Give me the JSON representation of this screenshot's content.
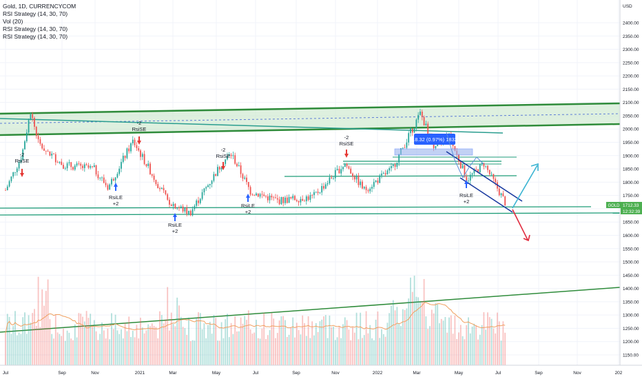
{
  "legend": {
    "symbol": "Gold, 1D, CURRENCYCOM",
    "indicators": [
      "RSI Strategy (14, 30, 70)",
      "Vol (20)",
      "RSI Strategy (14, 30, 70)",
      "RSI Strategy (14, 30, 70)"
    ]
  },
  "price_axis": {
    "currency": "USD",
    "ticks": [
      "2400.00",
      "2350.00",
      "2300.00",
      "2250.00",
      "2200.00",
      "2150.00",
      "2100.00",
      "2050.00",
      "2000.00",
      "1950.00",
      "1900.00",
      "1850.00",
      "1800.00",
      "1750.00",
      "1700.00",
      "1650.00",
      "1600.00",
      "1550.00",
      "1500.00",
      "1450.00",
      "1400.00",
      "1350.00",
      "1300.00",
      "1250.00",
      "1200.00",
      "1150.00"
    ],
    "symbol_label": "GOLD",
    "last_price": "1712.33",
    "countdown": "12:32:39"
  },
  "time_axis": [
    "Jul",
    "Sep",
    "Nov",
    "2021",
    "Mar",
    "May",
    "Jul",
    "Sep",
    "Nov",
    "2022",
    "Mar",
    "May",
    "Jul",
    "Sep",
    "Nov",
    "202"
  ],
  "signals": [
    {
      "lines": [
        "-2",
        "RsiSE"
      ]
    },
    {
      "lines": [
        "-2",
        "RsiSE"
      ]
    },
    {
      "lines": [
        "-2",
        "RsiSE"
      ]
    },
    {
      "lines": [
        "-2",
        "RsiSE"
      ]
    },
    {
      "lines": [
        "RsiLE",
        "+2"
      ]
    },
    {
      "lines": [
        "RsiLE",
        "+2"
      ]
    },
    {
      "lines": [
        "RsiLE",
        "+2"
      ]
    },
    {
      "lines": [
        "RsiLE",
        "+2"
      ]
    }
  ],
  "measure_label": "18.32 (0.97%) 1832",
  "colors": {
    "up": "#26a69a",
    "down": "#ef5350",
    "channel": "#2e8b3a",
    "channel_fill": "#c8e6c9",
    "wedge": "#1a3aa0",
    "arrow_up": "#3cb4d2",
    "arrow_down": "#e0283c",
    "signal_short": "#e53935",
    "signal_long": "#2962ff",
    "price_badge": "#4caf50",
    "measure": "#2962ff"
  },
  "chart_data": {
    "type": "candlestick",
    "title": "Gold, 1D, CURRENCYCOM",
    "ylim": [
      1130,
      2450
    ],
    "x_range": [
      "2020-06",
      "2023-01"
    ],
    "close_approx": [
      {
        "date": "2020-07-01",
        "price": 1770
      },
      {
        "date": "2020-07-25",
        "price": 1900
      },
      {
        "date": "2020-08-07",
        "price": 2065
      },
      {
        "date": "2020-08-20",
        "price": 1940
      },
      {
        "date": "2020-09-25",
        "price": 1865
      },
      {
        "date": "2020-11-09",
        "price": 1850
      },
      {
        "date": "2020-11-30",
        "price": 1780
      },
      {
        "date": "2021-01-06",
        "price": 1955
      },
      {
        "date": "2021-02-26",
        "price": 1730
      },
      {
        "date": "2021-03-31",
        "price": 1683
      },
      {
        "date": "2021-05-20",
        "price": 1880
      },
      {
        "date": "2021-06-01",
        "price": 1905
      },
      {
        "date": "2021-06-29",
        "price": 1765
      },
      {
        "date": "2021-08-09",
        "price": 1730
      },
      {
        "date": "2021-09-30",
        "price": 1745
      },
      {
        "date": "2021-11-16",
        "price": 1870
      },
      {
        "date": "2021-12-15",
        "price": 1770
      },
      {
        "date": "2022-01-25",
        "price": 1850
      },
      {
        "date": "2022-03-08",
        "price": 2060
      },
      {
        "date": "2022-03-30",
        "price": 1920
      },
      {
        "date": "2022-04-18",
        "price": 1980
      },
      {
        "date": "2022-05-16",
        "price": 1810
      },
      {
        "date": "2022-06-10",
        "price": 1870
      },
      {
        "date": "2022-07-14",
        "price": 1712
      }
    ],
    "volume_axis_overlay": true,
    "last_price": 1712.33
  }
}
